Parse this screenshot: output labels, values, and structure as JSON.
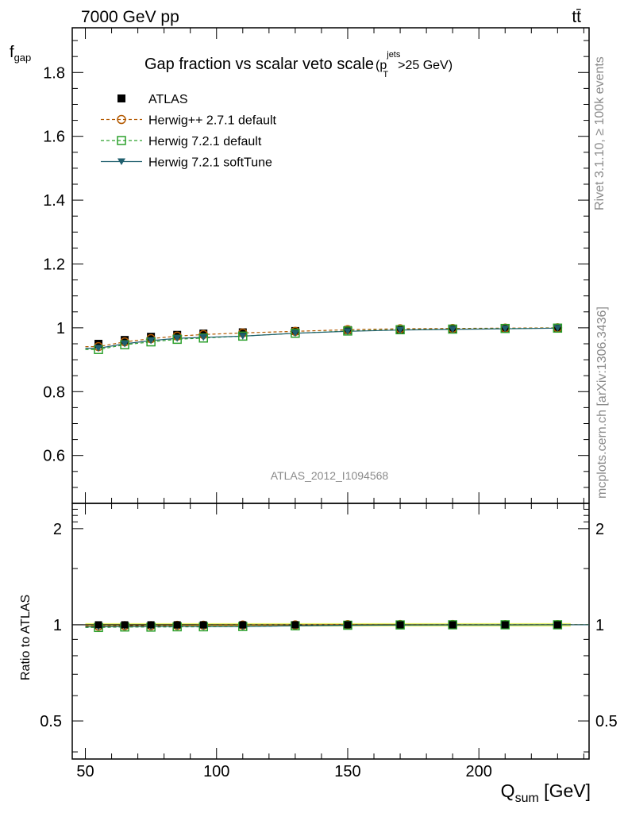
{
  "header": {
    "energy_label": "7000 GeV pp",
    "process_label": "tt̄"
  },
  "side_labels": {
    "rivet": "Rivet 3.1.10, ≥ 100k events",
    "mcplots": "mcplots.cern.ch [arXiv:1306.3436]"
  },
  "watermark": "ATLAS_2012_I1094568",
  "chart_data": {
    "type": "line",
    "title": "Gap fraction vs scalar veto scale",
    "title_cut": {
      "pre": "(p",
      "sup": "jets",
      "sub": "T",
      "post": ">25 GeV)"
    },
    "ylabel": {
      "main": "f",
      "sub": "gap"
    },
    "ratio_ylabel": "Ratio to ATLAS",
    "xlabel": {
      "main": "Q",
      "sub": "sum",
      "post": " [GeV]"
    },
    "xlim": [
      45,
      242
    ],
    "ylim": [
      0.45,
      1.94
    ],
    "ratio_ylim": [
      0.38,
      2.4
    ],
    "x_ticks": [
      "50",
      "100",
      "150",
      "200"
    ],
    "y_ticks": [
      "0.6",
      "0.8",
      "1",
      "1.2",
      "1.4",
      "1.6",
      "1.8"
    ],
    "ratio_y_ticks": [
      "0.5",
      "1",
      "2"
    ],
    "x": [
      55,
      65,
      75,
      85,
      95,
      110,
      130,
      150,
      170,
      190,
      210,
      230
    ],
    "series": [
      {
        "name": "ATLAS",
        "color": "#000000",
        "marker": "square-filled",
        "values": [
          0.95,
          0.962,
          0.972,
          0.978,
          0.982,
          0.986,
          0.99,
          0.993,
          0.995,
          0.996,
          0.998,
          0.999
        ]
      },
      {
        "name": "Herwig++ 2.7.1 default",
        "color": "#b35900",
        "marker": "circle-open",
        "line": "dashed",
        "values": [
          0.941,
          0.956,
          0.966,
          0.974,
          0.979,
          0.984,
          0.989,
          0.994,
          0.997,
          0.998,
          0.999,
          1.0
        ]
      },
      {
        "name": "Herwig 7.2.1 default",
        "color": "#2ca02c",
        "marker": "square-open",
        "line": "dashed",
        "values": [
          0.932,
          0.947,
          0.956,
          0.964,
          0.968,
          0.974,
          0.983,
          0.99,
          0.994,
          0.996,
          0.998,
          0.999
        ]
      },
      {
        "name": "Herwig 7.2.1 softTune",
        "color": "#1f5f6e",
        "marker": "triangle-down-filled",
        "line": "solid",
        "values": [
          0.936,
          0.95,
          0.96,
          0.967,
          0.97,
          0.974,
          0.983,
          0.989,
          0.993,
          0.995,
          0.997,
          0.999
        ]
      }
    ],
    "legend_position": "top-left",
    "band_color": "#e6f26a",
    "grid": false
  }
}
